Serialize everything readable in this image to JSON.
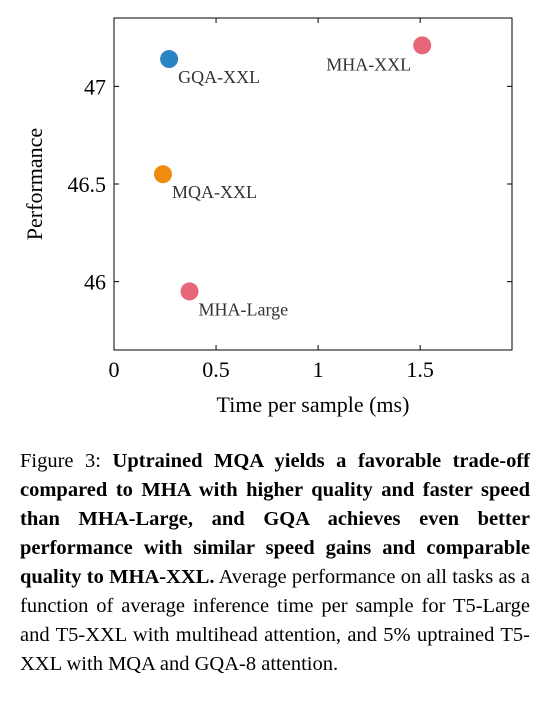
{
  "chart_data": {
    "type": "scatter",
    "title": "",
    "xlabel": "Time per sample (ms)",
    "ylabel": "Performance",
    "xlim": [
      0,
      1.95
    ],
    "ylim": [
      45.65,
      47.35
    ],
    "xticks": [
      0,
      0.5,
      1,
      1.5
    ],
    "xtick_labels": [
      "0",
      "0.5",
      "1",
      "1.5"
    ],
    "yticks": [
      46,
      46.5,
      47
    ],
    "ytick_labels": [
      "46",
      "46.5",
      "47"
    ],
    "grid": false,
    "points": [
      {
        "label": "MHA-XXL",
        "x": 1.51,
        "y": 47.21,
        "color": "#e8667a",
        "label_pos": "left"
      },
      {
        "label": "GQA-XXL",
        "x": 0.27,
        "y": 47.14,
        "color": "#2a84c4",
        "label_pos": "below-right"
      },
      {
        "label": "MQA-XXL",
        "x": 0.24,
        "y": 46.55,
        "color": "#ef8c10",
        "label_pos": "below-right"
      },
      {
        "label": "MHA-Large",
        "x": 0.37,
        "y": 45.95,
        "color": "#e8667a",
        "label_pos": "below-right"
      }
    ]
  },
  "caption": {
    "prefix": "Figure 3: ",
    "bold": "Uptrained MQA yields a favorable trade-off compared to MHA with higher quality and faster speed than MHA-Large, and GQA achieves even better performance with similar speed gains and comparable quality to MHA-XXL.",
    "rest": " Average performance on all tasks as a function of average inference time per sample for T5-Large and T5-XXL with multihead attention, and 5% uptrained T5-XXL with MQA and GQA-8 attention."
  }
}
